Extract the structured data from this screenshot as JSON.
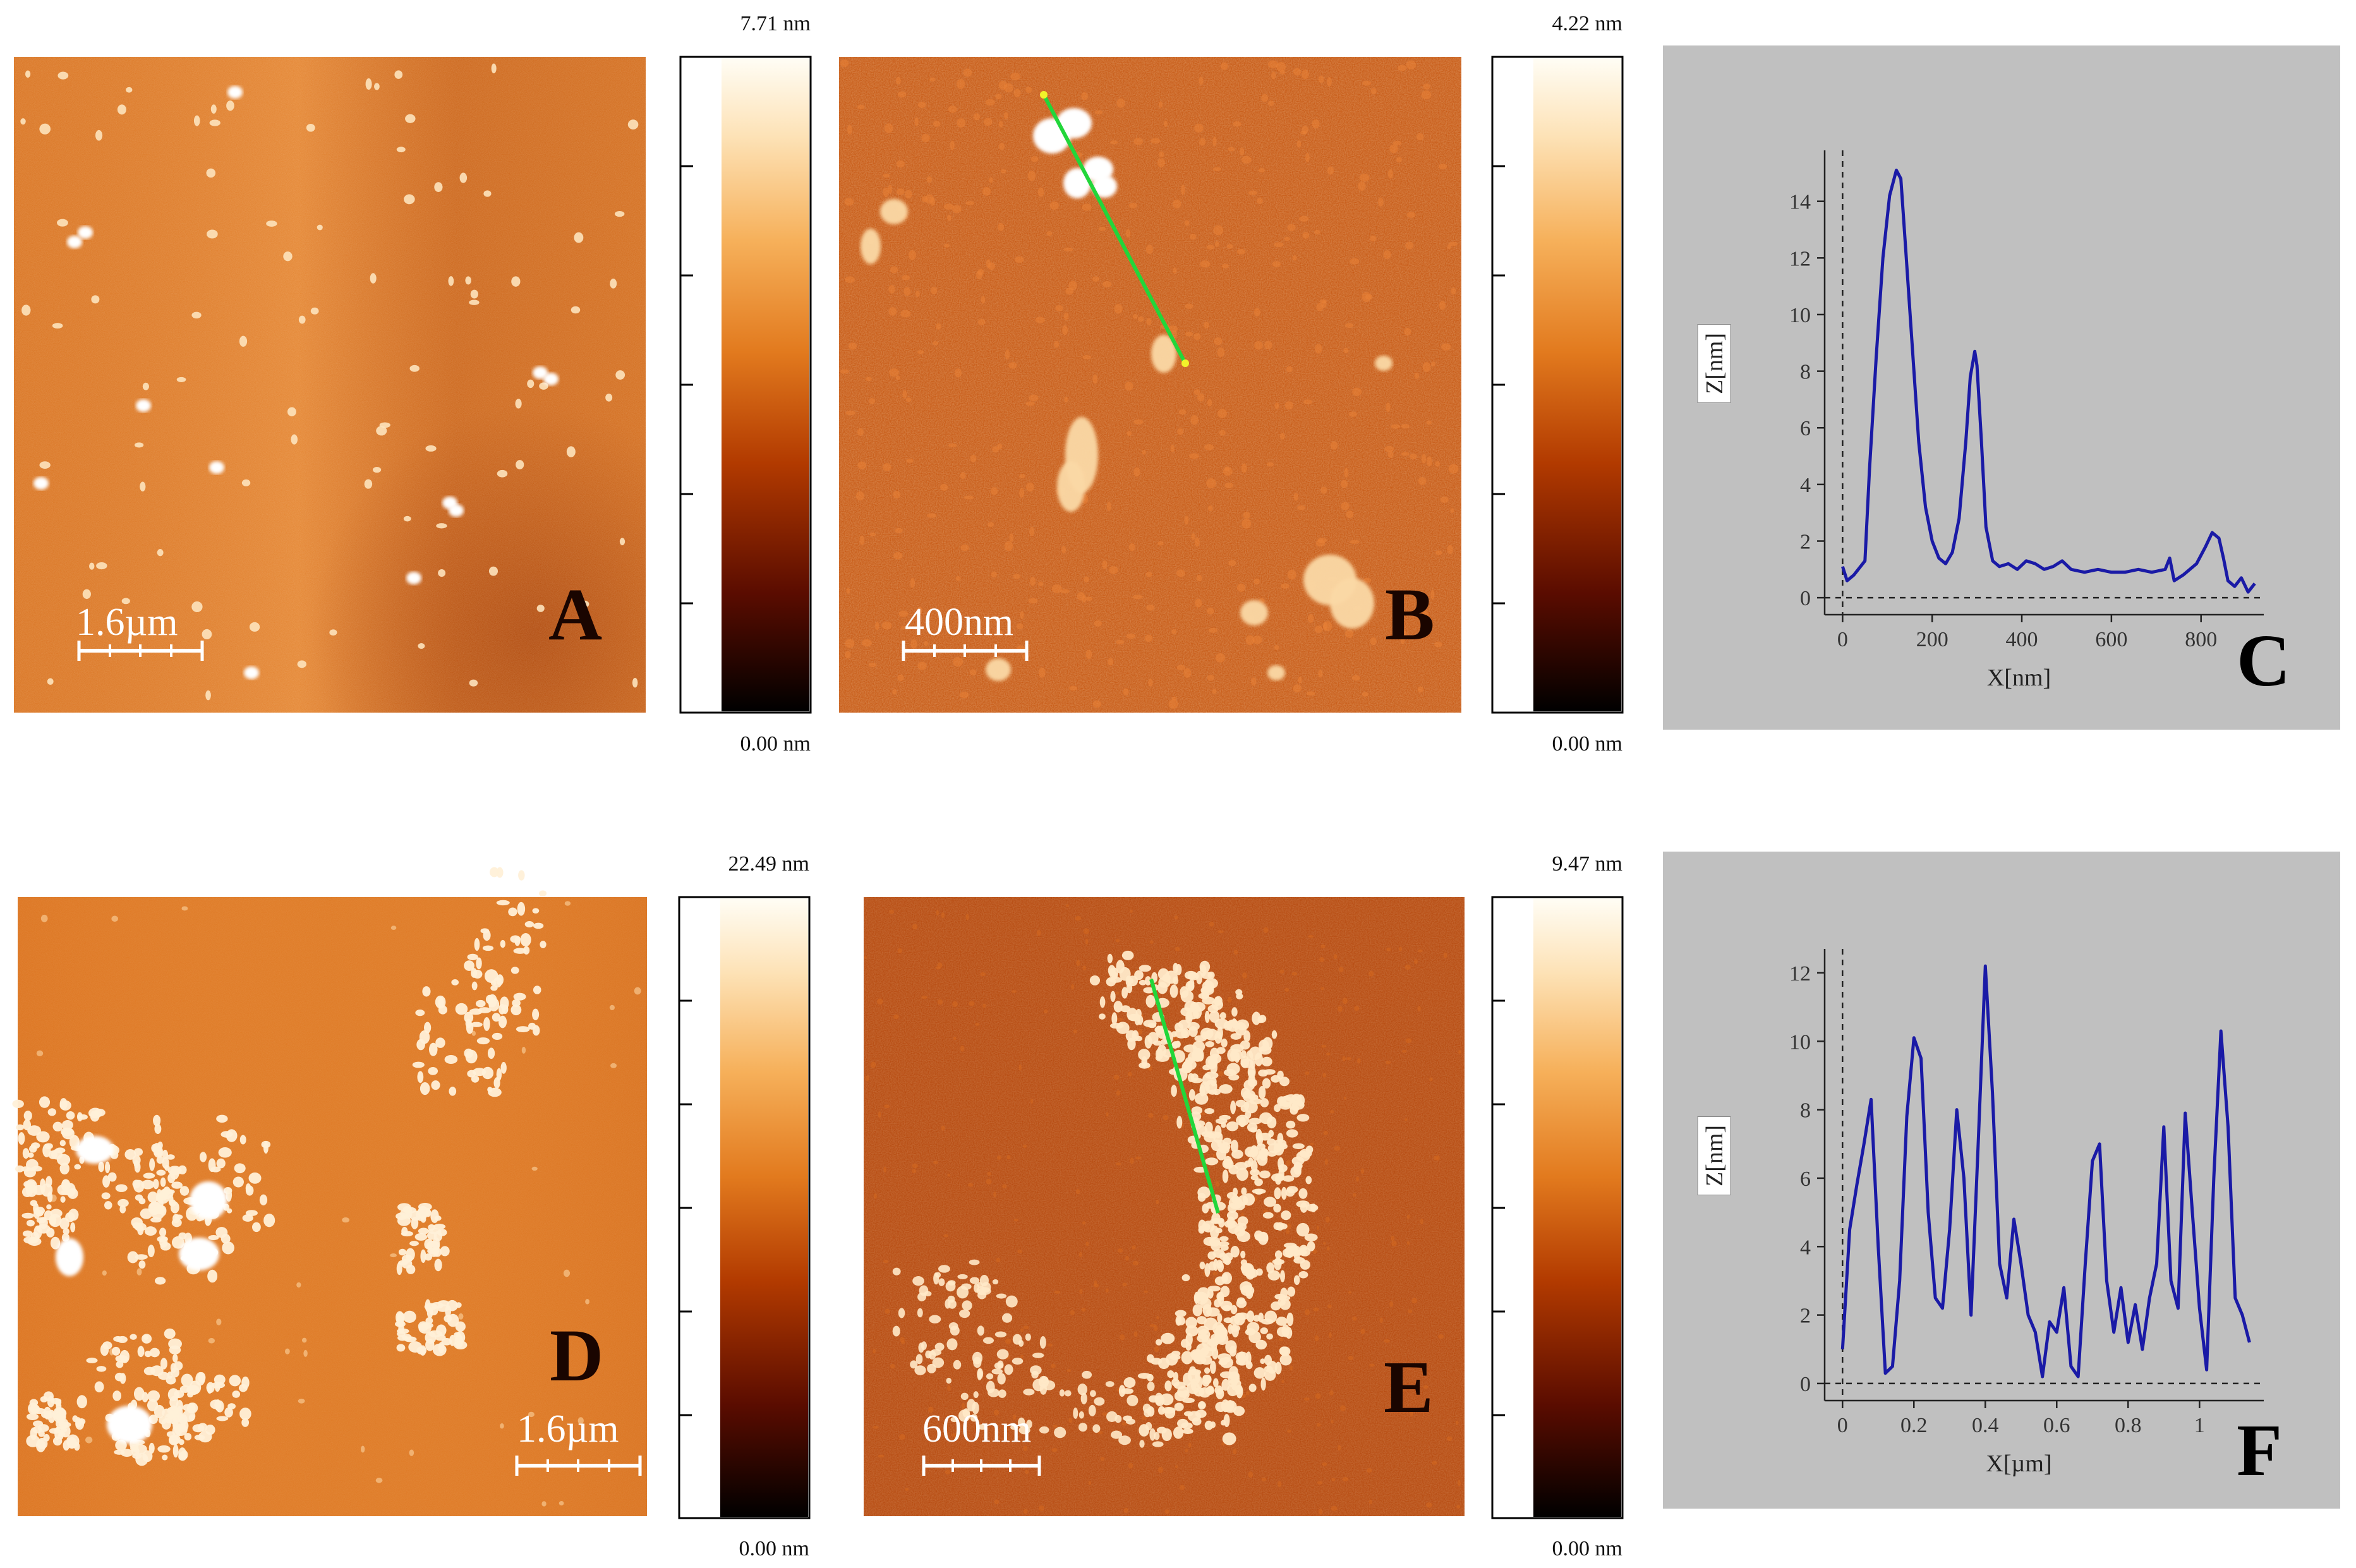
{
  "panels": {
    "A": {
      "letter": "A",
      "scale_label": "1.6µm",
      "cb_max": "7.71 nm",
      "cb_min": "0.00 nm"
    },
    "B": {
      "letter": "B",
      "scale_label": "400nm",
      "cb_max": "4.22 nm",
      "cb_min": "0.00 nm"
    },
    "D": {
      "letter": "D",
      "scale_label": "1.6µm",
      "cb_max": "22.49 nm",
      "cb_min": "0.00 nm"
    },
    "E": {
      "letter": "E",
      "scale_label": "600nm",
      "cb_max": "9.47 nm",
      "cb_min": "0.00 nm"
    },
    "C": {
      "letter": "C"
    },
    "F": {
      "letter": "F"
    }
  },
  "colors": {
    "afm_dark": "#2a0600",
    "afm_mid": "#c8570e",
    "afm_light": "#fff7e8",
    "profile_line": "#1a1aa6",
    "plot_bg": "#c0c0c0",
    "profile_marker": "#22d63a"
  },
  "chart_data": [
    {
      "type": "line",
      "panel": "C",
      "xlabel": "X[nm]",
      "ylabel": "Z[nm]",
      "xlim": [
        -40,
        940
      ],
      "ylim": [
        -0.6,
        15.8
      ],
      "xticks": [
        0,
        200,
        400,
        600,
        800
      ],
      "yticks": [
        0,
        2,
        4,
        6,
        8,
        10,
        12,
        14
      ],
      "x": [
        0,
        10,
        25,
        50,
        60,
        75,
        90,
        105,
        120,
        130,
        140,
        155,
        170,
        185,
        200,
        215,
        230,
        245,
        260,
        275,
        285,
        295,
        300,
        310,
        320,
        335,
        350,
        370,
        390,
        410,
        430,
        450,
        470,
        490,
        510,
        540,
        570,
        600,
        630,
        660,
        690,
        720,
        730,
        740,
        760,
        790,
        810,
        825,
        840,
        850,
        860,
        875,
        890,
        905,
        920
      ],
      "y": [
        1.1,
        0.6,
        0.8,
        1.3,
        4.5,
        8.5,
        12.0,
        14.2,
        15.1,
        14.8,
        12.5,
        9.0,
        5.5,
        3.2,
        2.0,
        1.4,
        1.2,
        1.6,
        2.8,
        5.5,
        7.8,
        8.7,
        8.2,
        5.5,
        2.5,
        1.3,
        1.1,
        1.2,
        1.0,
        1.3,
        1.2,
        1.0,
        1.1,
        1.3,
        1.0,
        0.9,
        1.0,
        0.9,
        0.9,
        1.0,
        0.9,
        1.0,
        1.4,
        0.6,
        0.8,
        1.2,
        1.8,
        2.3,
        2.1,
        1.4,
        0.6,
        0.4,
        0.7,
        0.2,
        0.5
      ]
    },
    {
      "type": "line",
      "panel": "F",
      "xlabel": "X[µm]",
      "ylabel": "Z[nm]",
      "xlim": [
        -0.05,
        1.18
      ],
      "ylim": [
        -0.5,
        12.7
      ],
      "xticks": [
        0,
        0.2,
        0.4,
        0.6,
        0.8,
        1
      ],
      "xtick_labels": [
        "0",
        "0.2",
        "0.4",
        "0.6",
        "0.8",
        "1"
      ],
      "yticks": [
        0,
        2,
        4,
        6,
        8,
        10,
        12
      ],
      "x": [
        0,
        0.02,
        0.04,
        0.06,
        0.08,
        0.1,
        0.12,
        0.14,
        0.16,
        0.18,
        0.2,
        0.22,
        0.24,
        0.26,
        0.28,
        0.3,
        0.32,
        0.34,
        0.36,
        0.38,
        0.4,
        0.42,
        0.44,
        0.46,
        0.48,
        0.5,
        0.52,
        0.54,
        0.56,
        0.58,
        0.6,
        0.62,
        0.64,
        0.66,
        0.68,
        0.7,
        0.72,
        0.74,
        0.76,
        0.78,
        0.8,
        0.82,
        0.84,
        0.86,
        0.88,
        0.9,
        0.92,
        0.94,
        0.96,
        0.98,
        1.0,
        1.02,
        1.04,
        1.06,
        1.08,
        1.1,
        1.12,
        1.14
      ],
      "y": [
        1.0,
        4.5,
        5.8,
        7.0,
        8.3,
        4.0,
        0.3,
        0.5,
        3.0,
        7.8,
        10.1,
        9.5,
        5.0,
        2.5,
        2.2,
        4.5,
        8.0,
        6.0,
        2.0,
        7.0,
        12.2,
        8.5,
        3.5,
        2.5,
        4.8,
        3.5,
        2.0,
        1.5,
        0.2,
        1.8,
        1.5,
        2.8,
        0.5,
        0.2,
        3.5,
        6.5,
        7.0,
        3.0,
        1.5,
        2.8,
        1.2,
        2.3,
        1.0,
        2.5,
        3.5,
        7.5,
        3.0,
        2.2,
        7.9,
        5.0,
        2.2,
        0.4,
        6.0,
        10.3,
        7.5,
        2.5,
        2.0,
        1.2
      ]
    }
  ]
}
